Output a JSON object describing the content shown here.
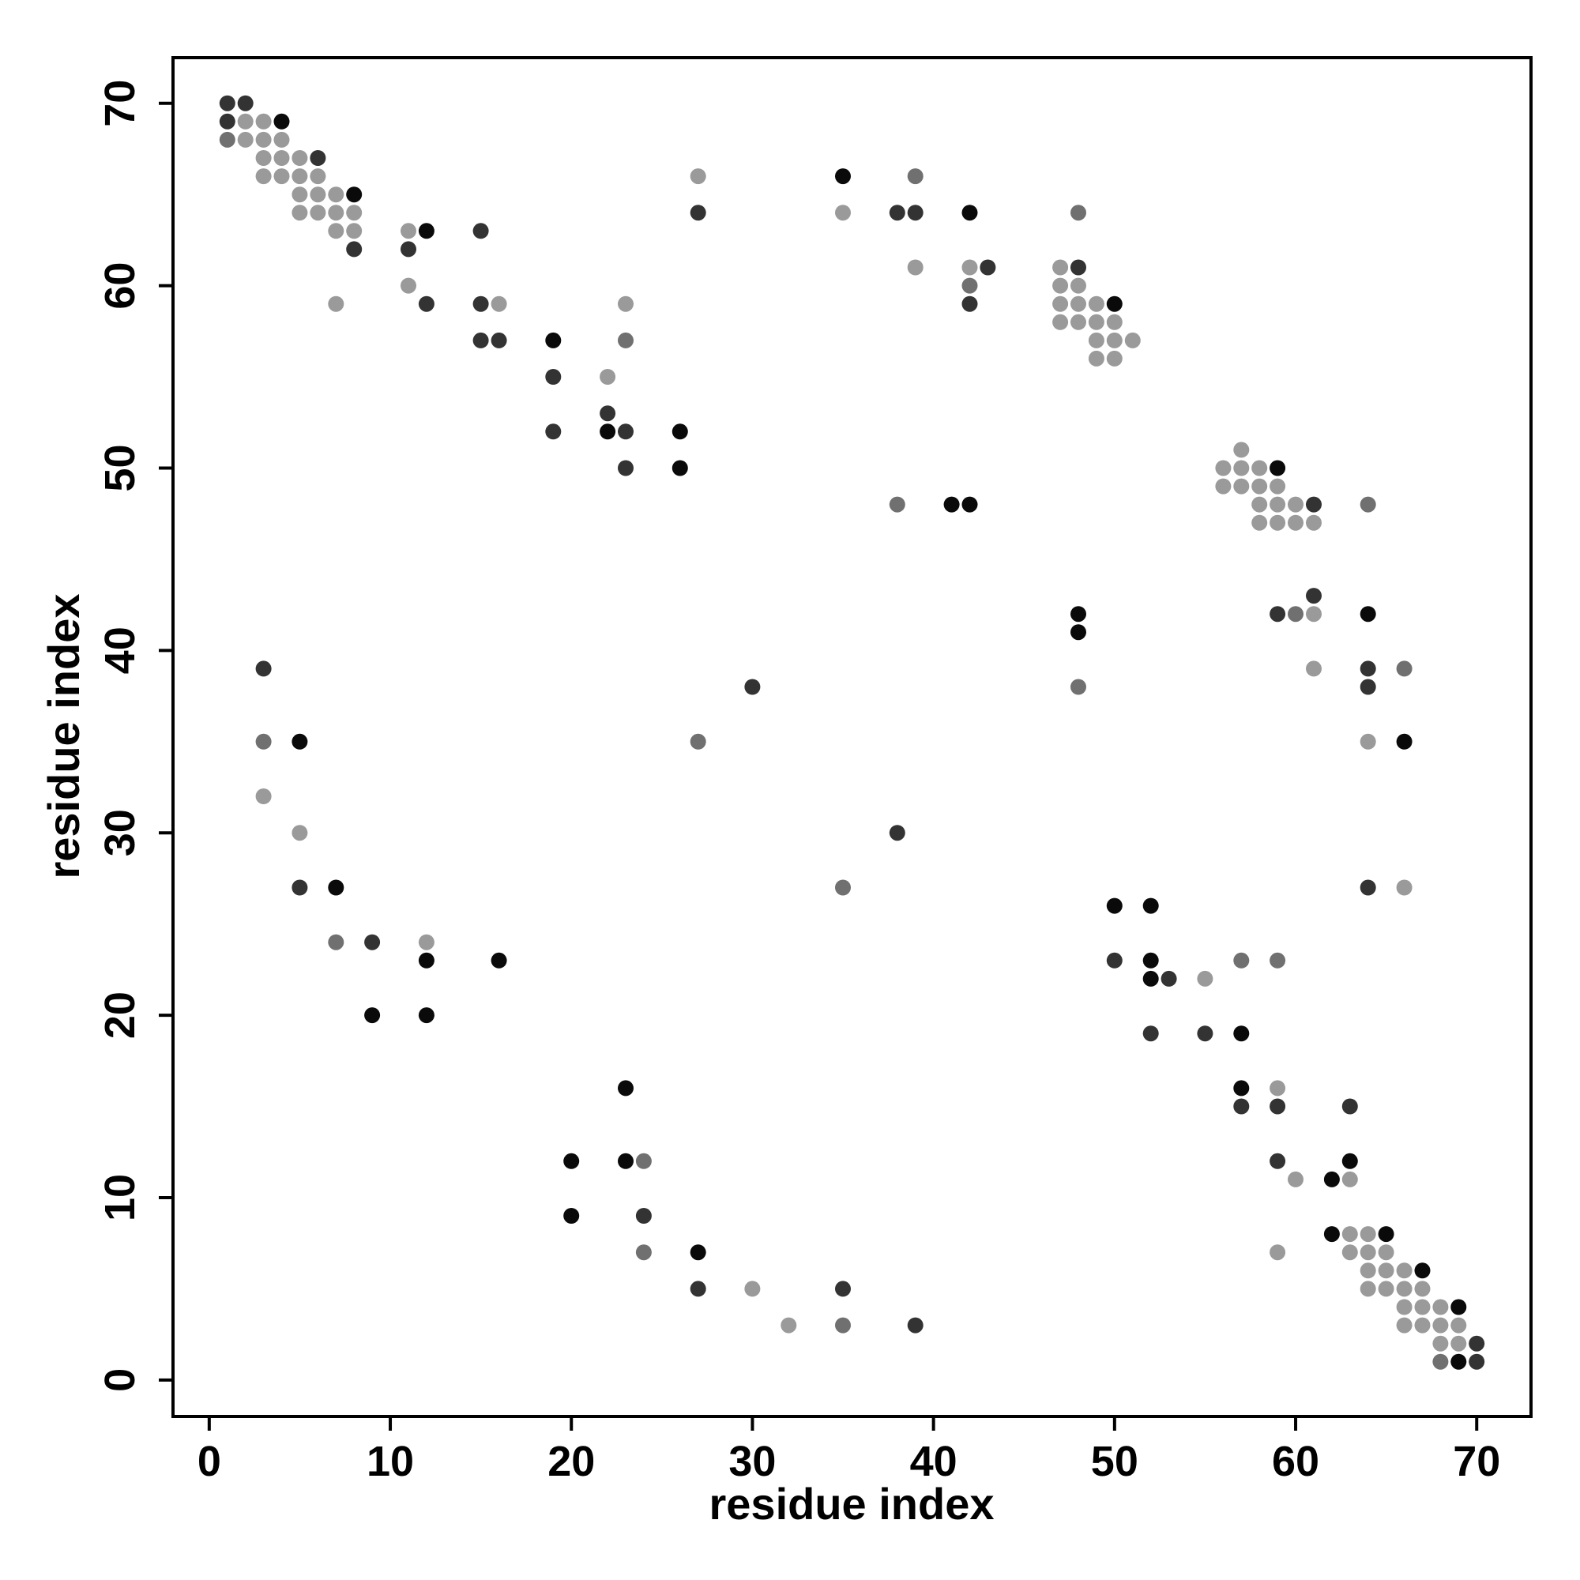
{
  "chart_data": {
    "type": "scatter",
    "title": "",
    "xlabel": "residue index",
    "ylabel": "residue index",
    "xlim": [
      -2,
      73
    ],
    "ylim": [
      -2,
      72.5
    ],
    "xticks": [
      0,
      10,
      20,
      30,
      40,
      50,
      60,
      70
    ],
    "yticks": [
      0,
      10,
      20,
      30,
      40,
      50,
      60,
      70
    ],
    "grid": false,
    "legend": "none",
    "colors": {
      "black": "#0a0a0a",
      "dark": "#333333",
      "mid": "#707070",
      "light": "#9a9a9a"
    },
    "points": [
      {
        "x": 1,
        "y": 70,
        "shade": "dark"
      },
      {
        "x": 2,
        "y": 70,
        "shade": "dark"
      },
      {
        "x": 1,
        "y": 69,
        "shade": "dark"
      },
      {
        "x": 2,
        "y": 69,
        "shade": "light"
      },
      {
        "x": 3,
        "y": 69,
        "shade": "light"
      },
      {
        "x": 4,
        "y": 69,
        "shade": "black"
      },
      {
        "x": 1,
        "y": 68,
        "shade": "mid"
      },
      {
        "x": 2,
        "y": 68,
        "shade": "light"
      },
      {
        "x": 3,
        "y": 68,
        "shade": "light"
      },
      {
        "x": 4,
        "y": 68,
        "shade": "light"
      },
      {
        "x": 3,
        "y": 67,
        "shade": "light"
      },
      {
        "x": 4,
        "y": 67,
        "shade": "light"
      },
      {
        "x": 5,
        "y": 67,
        "shade": "light"
      },
      {
        "x": 6,
        "y": 67,
        "shade": "dark"
      },
      {
        "x": 3,
        "y": 66,
        "shade": "light"
      },
      {
        "x": 4,
        "y": 66,
        "shade": "light"
      },
      {
        "x": 5,
        "y": 66,
        "shade": "light"
      },
      {
        "x": 6,
        "y": 66,
        "shade": "light"
      },
      {
        "x": 5,
        "y": 65,
        "shade": "light"
      },
      {
        "x": 6,
        "y": 65,
        "shade": "light"
      },
      {
        "x": 7,
        "y": 65,
        "shade": "light"
      },
      {
        "x": 8,
        "y": 65,
        "shade": "black"
      },
      {
        "x": 5,
        "y": 64,
        "shade": "light"
      },
      {
        "x": 6,
        "y": 64,
        "shade": "light"
      },
      {
        "x": 7,
        "y": 64,
        "shade": "light"
      },
      {
        "x": 8,
        "y": 64,
        "shade": "light"
      },
      {
        "x": 7,
        "y": 63,
        "shade": "light"
      },
      {
        "x": 8,
        "y": 63,
        "shade": "light"
      },
      {
        "x": 8,
        "y": 62,
        "shade": "dark"
      },
      {
        "x": 11,
        "y": 63,
        "shade": "light"
      },
      {
        "x": 12,
        "y": 63,
        "shade": "black"
      },
      {
        "x": 11,
        "y": 62,
        "shade": "dark"
      },
      {
        "x": 11,
        "y": 60,
        "shade": "light"
      },
      {
        "x": 7,
        "y": 59,
        "shade": "light"
      },
      {
        "x": 12,
        "y": 59,
        "shade": "dark"
      },
      {
        "x": 15,
        "y": 63,
        "shade": "dark"
      },
      {
        "x": 15,
        "y": 59,
        "shade": "dark"
      },
      {
        "x": 16,
        "y": 59,
        "shade": "light"
      },
      {
        "x": 15,
        "y": 57,
        "shade": "dark"
      },
      {
        "x": 16,
        "y": 57,
        "shade": "dark"
      },
      {
        "x": 19,
        "y": 57,
        "shade": "black"
      },
      {
        "x": 19,
        "y": 55,
        "shade": "dark"
      },
      {
        "x": 19,
        "y": 52,
        "shade": "dark"
      },
      {
        "x": 22,
        "y": 55,
        "shade": "light"
      },
      {
        "x": 22,
        "y": 53,
        "shade": "dark"
      },
      {
        "x": 22,
        "y": 52,
        "shade": "black"
      },
      {
        "x": 23,
        "y": 52,
        "shade": "dark"
      },
      {
        "x": 23,
        "y": 59,
        "shade": "light"
      },
      {
        "x": 23,
        "y": 57,
        "shade": "mid"
      },
      {
        "x": 23,
        "y": 50,
        "shade": "dark"
      },
      {
        "x": 26,
        "y": 52,
        "shade": "black"
      },
      {
        "x": 26,
        "y": 50,
        "shade": "black"
      },
      {
        "x": 27,
        "y": 66,
        "shade": "light"
      },
      {
        "x": 27,
        "y": 64,
        "shade": "dark"
      },
      {
        "x": 35,
        "y": 66,
        "shade": "black"
      },
      {
        "x": 35,
        "y": 64,
        "shade": "light"
      },
      {
        "x": 38,
        "y": 64,
        "shade": "dark"
      },
      {
        "x": 39,
        "y": 64,
        "shade": "dark"
      },
      {
        "x": 39,
        "y": 66,
        "shade": "mid"
      },
      {
        "x": 39,
        "y": 61,
        "shade": "light"
      },
      {
        "x": 42,
        "y": 64,
        "shade": "black"
      },
      {
        "x": 42,
        "y": 61,
        "shade": "light"
      },
      {
        "x": 43,
        "y": 61,
        "shade": "dark"
      },
      {
        "x": 42,
        "y": 60,
        "shade": "mid"
      },
      {
        "x": 42,
        "y": 59,
        "shade": "dark"
      },
      {
        "x": 38,
        "y": 48,
        "shade": "mid"
      },
      {
        "x": 41,
        "y": 48,
        "shade": "black"
      },
      {
        "x": 42,
        "y": 48,
        "shade": "black"
      },
      {
        "x": 48,
        "y": 64,
        "shade": "mid"
      },
      {
        "x": 47,
        "y": 61,
        "shade": "light"
      },
      {
        "x": 48,
        "y": 61,
        "shade": "dark"
      },
      {
        "x": 47,
        "y": 60,
        "shade": "light"
      },
      {
        "x": 48,
        "y": 60,
        "shade": "light"
      },
      {
        "x": 47,
        "y": 59,
        "shade": "light"
      },
      {
        "x": 48,
        "y": 59,
        "shade": "light"
      },
      {
        "x": 49,
        "y": 59,
        "shade": "light"
      },
      {
        "x": 50,
        "y": 59,
        "shade": "black"
      },
      {
        "x": 47,
        "y": 58,
        "shade": "light"
      },
      {
        "x": 48,
        "y": 58,
        "shade": "light"
      },
      {
        "x": 49,
        "y": 58,
        "shade": "light"
      },
      {
        "x": 50,
        "y": 58,
        "shade": "light"
      },
      {
        "x": 49,
        "y": 57,
        "shade": "light"
      },
      {
        "x": 50,
        "y": 57,
        "shade": "light"
      },
      {
        "x": 51,
        "y": 57,
        "shade": "light"
      },
      {
        "x": 49,
        "y": 56,
        "shade": "light"
      },
      {
        "x": 50,
        "y": 56,
        "shade": "light"
      },
      {
        "x": 57,
        "y": 51,
        "shade": "light"
      },
      {
        "x": 56,
        "y": 50,
        "shade": "light"
      },
      {
        "x": 57,
        "y": 50,
        "shade": "light"
      },
      {
        "x": 58,
        "y": 50,
        "shade": "light"
      },
      {
        "x": 59,
        "y": 50,
        "shade": "black"
      },
      {
        "x": 56,
        "y": 49,
        "shade": "light"
      },
      {
        "x": 57,
        "y": 49,
        "shade": "light"
      },
      {
        "x": 58,
        "y": 49,
        "shade": "light"
      },
      {
        "x": 59,
        "y": 49,
        "shade": "light"
      },
      {
        "x": 58,
        "y": 48,
        "shade": "light"
      },
      {
        "x": 59,
        "y": 48,
        "shade": "light"
      },
      {
        "x": 60,
        "y": 48,
        "shade": "light"
      },
      {
        "x": 61,
        "y": 48,
        "shade": "dark"
      },
      {
        "x": 58,
        "y": 47,
        "shade": "light"
      },
      {
        "x": 59,
        "y": 47,
        "shade": "light"
      },
      {
        "x": 60,
        "y": 47,
        "shade": "light"
      },
      {
        "x": 61,
        "y": 47,
        "shade": "light"
      },
      {
        "x": 64,
        "y": 48,
        "shade": "mid"
      },
      {
        "x": 61,
        "y": 43,
        "shade": "dark"
      },
      {
        "x": 59,
        "y": 42,
        "shade": "dark"
      },
      {
        "x": 60,
        "y": 42,
        "shade": "mid"
      },
      {
        "x": 61,
        "y": 42,
        "shade": "light"
      },
      {
        "x": 61,
        "y": 39,
        "shade": "light"
      },
      {
        "x": 64,
        "y": 42,
        "shade": "black"
      },
      {
        "x": 64,
        "y": 39,
        "shade": "dark"
      },
      {
        "x": 64,
        "y": 38,
        "shade": "dark"
      },
      {
        "x": 64,
        "y": 35,
        "shade": "light"
      },
      {
        "x": 64,
        "y": 27,
        "shade": "dark"
      },
      {
        "x": 66,
        "y": 39,
        "shade": "mid"
      },
      {
        "x": 66,
        "y": 35,
        "shade": "black"
      },
      {
        "x": 66,
        "y": 27,
        "shade": "light"
      },
      {
        "x": 48,
        "y": 42,
        "shade": "black"
      },
      {
        "x": 48,
        "y": 41,
        "shade": "black"
      },
      {
        "x": 48,
        "y": 38,
        "shade": "mid"
      },
      {
        "x": 27,
        "y": 35,
        "shade": "mid"
      },
      {
        "x": 30,
        "y": 38,
        "shade": "dark"
      },
      {
        "x": 38,
        "y": 30,
        "shade": "dark"
      },
      {
        "x": 35,
        "y": 27,
        "shade": "mid"
      },
      {
        "x": 3,
        "y": 39,
        "shade": "dark"
      },
      {
        "x": 3,
        "y": 35,
        "shade": "mid"
      },
      {
        "x": 5,
        "y": 35,
        "shade": "black"
      },
      {
        "x": 3,
        "y": 32,
        "shade": "light"
      },
      {
        "x": 5,
        "y": 30,
        "shade": "light"
      },
      {
        "x": 5,
        "y": 27,
        "shade": "dark"
      },
      {
        "x": 7,
        "y": 27,
        "shade": "black"
      },
      {
        "x": 7,
        "y": 24,
        "shade": "mid"
      },
      {
        "x": 9,
        "y": 24,
        "shade": "dark"
      },
      {
        "x": 12,
        "y": 24,
        "shade": "light"
      },
      {
        "x": 12,
        "y": 23,
        "shade": "black"
      },
      {
        "x": 16,
        "y": 23,
        "shade": "black"
      },
      {
        "x": 9,
        "y": 20,
        "shade": "black"
      },
      {
        "x": 12,
        "y": 20,
        "shade": "black"
      },
      {
        "x": 50,
        "y": 26,
        "shade": "black"
      },
      {
        "x": 52,
        "y": 26,
        "shade": "black"
      },
      {
        "x": 50,
        "y": 23,
        "shade": "dark"
      },
      {
        "x": 52,
        "y": 23,
        "shade": "black"
      },
      {
        "x": 52,
        "y": 22,
        "shade": "black"
      },
      {
        "x": 53,
        "y": 22,
        "shade": "dark"
      },
      {
        "x": 55,
        "y": 22,
        "shade": "light"
      },
      {
        "x": 57,
        "y": 23,
        "shade": "mid"
      },
      {
        "x": 59,
        "y": 23,
        "shade": "mid"
      },
      {
        "x": 52,
        "y": 19,
        "shade": "dark"
      },
      {
        "x": 55,
        "y": 19,
        "shade": "dark"
      },
      {
        "x": 57,
        "y": 19,
        "shade": "black"
      },
      {
        "x": 57,
        "y": 16,
        "shade": "black"
      },
      {
        "x": 59,
        "y": 16,
        "shade": "light"
      },
      {
        "x": 57,
        "y": 15,
        "shade": "dark"
      },
      {
        "x": 59,
        "y": 15,
        "shade": "dark"
      },
      {
        "x": 63,
        "y": 15,
        "shade": "dark"
      },
      {
        "x": 59,
        "y": 12,
        "shade": "dark"
      },
      {
        "x": 63,
        "y": 12,
        "shade": "black"
      },
      {
        "x": 60,
        "y": 11,
        "shade": "light"
      },
      {
        "x": 62,
        "y": 11,
        "shade": "black"
      },
      {
        "x": 63,
        "y": 11,
        "shade": "light"
      },
      {
        "x": 62,
        "y": 8,
        "shade": "black"
      },
      {
        "x": 63,
        "y": 8,
        "shade": "light"
      },
      {
        "x": 64,
        "y": 8,
        "shade": "light"
      },
      {
        "x": 65,
        "y": 8,
        "shade": "black"
      },
      {
        "x": 59,
        "y": 7,
        "shade": "light"
      },
      {
        "x": 63,
        "y": 7,
        "shade": "light"
      },
      {
        "x": 64,
        "y": 7,
        "shade": "light"
      },
      {
        "x": 65,
        "y": 7,
        "shade": "light"
      },
      {
        "x": 64,
        "y": 6,
        "shade": "light"
      },
      {
        "x": 65,
        "y": 6,
        "shade": "light"
      },
      {
        "x": 66,
        "y": 6,
        "shade": "light"
      },
      {
        "x": 67,
        "y": 6,
        "shade": "black"
      },
      {
        "x": 64,
        "y": 5,
        "shade": "light"
      },
      {
        "x": 65,
        "y": 5,
        "shade": "light"
      },
      {
        "x": 66,
        "y": 5,
        "shade": "light"
      },
      {
        "x": 67,
        "y": 5,
        "shade": "light"
      },
      {
        "x": 66,
        "y": 4,
        "shade": "light"
      },
      {
        "x": 67,
        "y": 4,
        "shade": "light"
      },
      {
        "x": 68,
        "y": 4,
        "shade": "light"
      },
      {
        "x": 69,
        "y": 4,
        "shade": "black"
      },
      {
        "x": 66,
        "y": 3,
        "shade": "light"
      },
      {
        "x": 67,
        "y": 3,
        "shade": "light"
      },
      {
        "x": 68,
        "y": 3,
        "shade": "light"
      },
      {
        "x": 69,
        "y": 3,
        "shade": "light"
      },
      {
        "x": 68,
        "y": 2,
        "shade": "light"
      },
      {
        "x": 69,
        "y": 2,
        "shade": "light"
      },
      {
        "x": 70,
        "y": 2,
        "shade": "dark"
      },
      {
        "x": 68,
        "y": 1,
        "shade": "mid"
      },
      {
        "x": 69,
        "y": 1,
        "shade": "black"
      },
      {
        "x": 70,
        "y": 1,
        "shade": "dark"
      },
      {
        "x": 20,
        "y": 12,
        "shade": "black"
      },
      {
        "x": 23,
        "y": 16,
        "shade": "black"
      },
      {
        "x": 23,
        "y": 12,
        "shade": "black"
      },
      {
        "x": 24,
        "y": 12,
        "shade": "mid"
      },
      {
        "x": 20,
        "y": 9,
        "shade": "black"
      },
      {
        "x": 24,
        "y": 9,
        "shade": "dark"
      },
      {
        "x": 24,
        "y": 7,
        "shade": "mid"
      },
      {
        "x": 27,
        "y": 7,
        "shade": "black"
      },
      {
        "x": 27,
        "y": 5,
        "shade": "dark"
      },
      {
        "x": 30,
        "y": 5,
        "shade": "light"
      },
      {
        "x": 35,
        "y": 5,
        "shade": "dark"
      },
      {
        "x": 32,
        "y": 3,
        "shade": "light"
      },
      {
        "x": 35,
        "y": 3,
        "shade": "mid"
      },
      {
        "x": 39,
        "y": 3,
        "shade": "dark"
      }
    ]
  }
}
